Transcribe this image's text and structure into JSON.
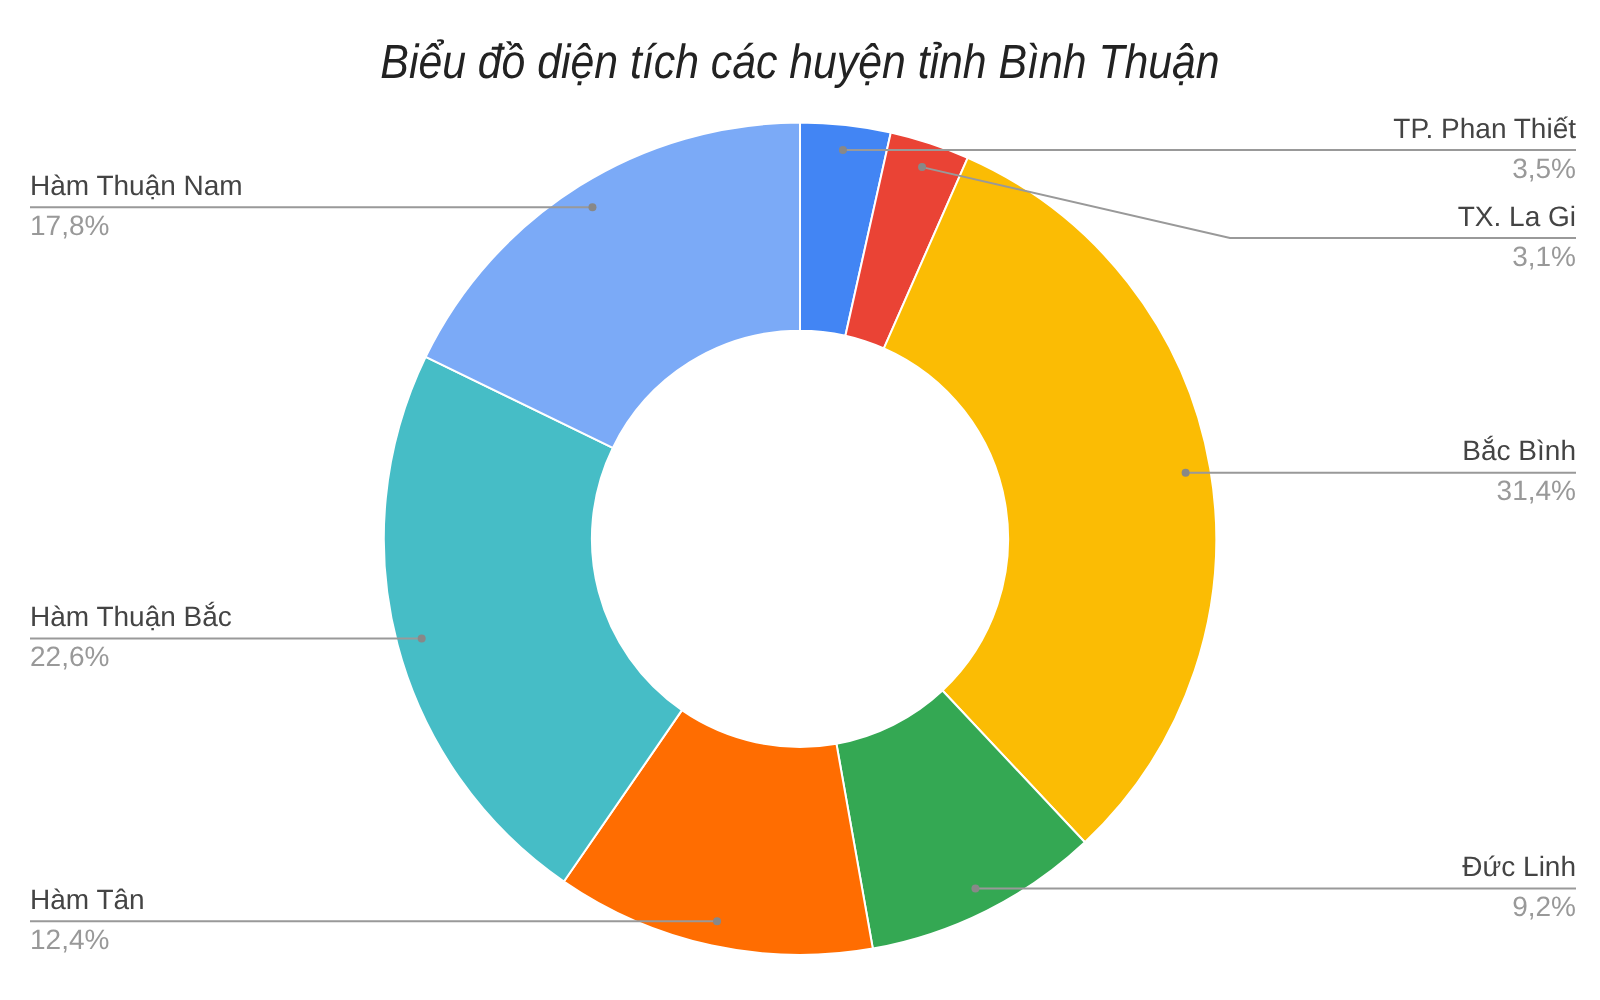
{
  "chart_data": {
    "type": "donut",
    "title": "Biểu đồ diện tích các huyện tỉnh Bình Thuận",
    "categories": [
      "TP. Phan Thiết",
      "TX. La Gi",
      "Bắc Bình",
      "Đức Linh",
      "Hàm Tân",
      "Hàm Thuận Bắc",
      "Hàm Thuận Nam"
    ],
    "values": [
      3.5,
      3.1,
      31.4,
      9.2,
      12.4,
      22.6,
      17.8
    ],
    "value_labels": [
      "3,5%",
      "3,1%",
      "31,4%",
      "9,2%",
      "12,4%",
      "22,6%",
      "17,8%"
    ],
    "colors": [
      "#4285f4",
      "#ea4335",
      "#fbbc04",
      "#34a853",
      "#ff6d01",
      "#46bdc6",
      "#7baaf7"
    ],
    "legend": false
  }
}
